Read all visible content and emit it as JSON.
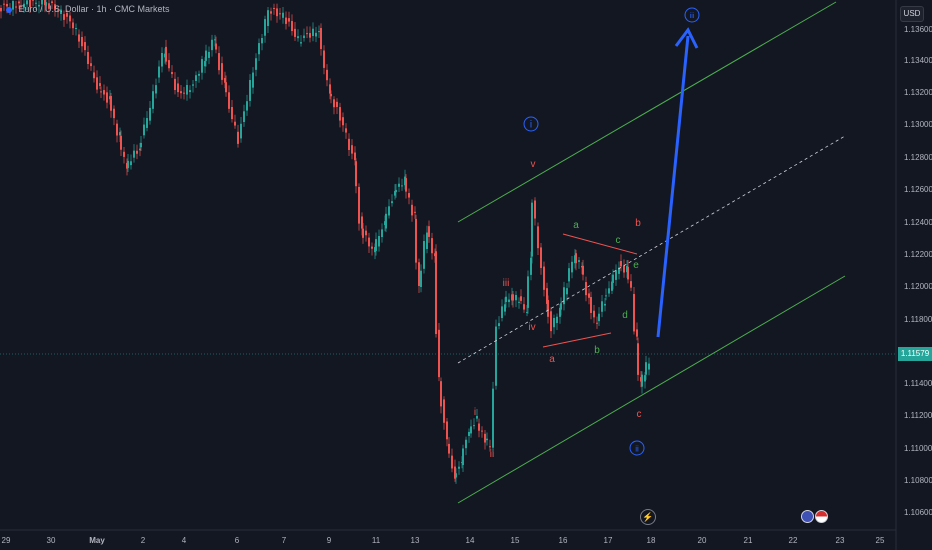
{
  "legend": {
    "title": "Euro / U.S. Dollar · 1h · CMC Markets"
  },
  "currency_button": "USD",
  "current_price": "1.11579",
  "price_axis": [
    "1.13600",
    "1.13400",
    "1.13200",
    "1.13000",
    "1.12800",
    "1.12600",
    "1.12400",
    "1.12200",
    "1.12000",
    "1.11800",
    "1.11400",
    "1.11200",
    "1.11000",
    "1.10800",
    "1.10600"
  ],
  "time_axis": [
    "29",
    "30",
    "May",
    "2",
    "4",
    "6",
    "7",
    "9",
    "11",
    "13",
    "14",
    "15",
    "16",
    "17",
    "18",
    "20",
    "21",
    "22",
    "23",
    "25"
  ],
  "wave_labels": {
    "circle_i": "i",
    "circle_ii": "ii",
    "circle_iii": "iii",
    "v": "v",
    "iii": "iii",
    "iv": "iv",
    "i": "i",
    "ii": "ii",
    "a_lower": "a",
    "b_lower": "b",
    "c_upper": "c",
    "a_upper": "a",
    "b_upper": "b",
    "d": "d",
    "e": "e",
    "c_lower": "c"
  },
  "colors": {
    "bg": "#131722",
    "up": "#26a69a",
    "down": "#ef5350",
    "channel": "#4caf50",
    "arrow": "#2962ff",
    "wave_red": "#ef5350",
    "wave_green": "#4caf50"
  },
  "icons": {
    "flash": "flash-icon",
    "flags": "country-flags-icon"
  }
}
